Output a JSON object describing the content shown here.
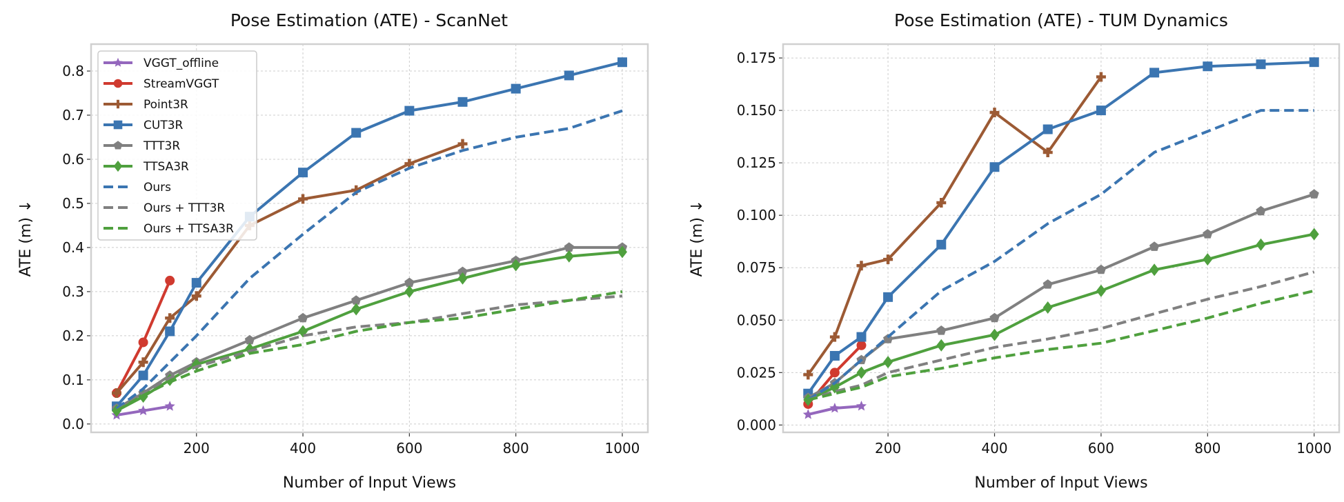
{
  "chart_data": [
    {
      "type": "line",
      "title": "Pose Estimation (ATE) - ScanNet",
      "xlabel": "Number of Input Views",
      "ylabel": "ATE (m)  ↓",
      "xlim": [
        2,
        1048
      ],
      "ylim": [
        -0.019,
        0.861
      ],
      "xticks": [
        200,
        400,
        600,
        800,
        1000
      ],
      "yticks": [
        0.0,
        0.1,
        0.2,
        0.3,
        0.4,
        0.5,
        0.6,
        0.7,
        0.8
      ],
      "ytick_decimals": 1,
      "grid": true,
      "legend": "top-left",
      "series": [
        {
          "name": "VGGT_offline",
          "color": "#9467bd",
          "marker": "star",
          "dash": false,
          "x": [
            50,
            100,
            150
          ],
          "y": [
            0.02,
            0.03,
            0.04
          ]
        },
        {
          "name": "StreamVGGT",
          "color": "#d03a2f",
          "marker": "circle",
          "dash": false,
          "x": [
            50,
            100,
            150
          ],
          "y": [
            0.07,
            0.185,
            0.325
          ]
        },
        {
          "name": "Point3R",
          "color": "#9c5a34",
          "marker": "plus",
          "dash": false,
          "x": [
            50,
            100,
            150,
            200,
            300,
            400,
            500,
            600,
            700
          ],
          "y": [
            0.07,
            0.14,
            0.24,
            0.29,
            0.45,
            0.51,
            0.53,
            0.59,
            0.635
          ]
        },
        {
          "name": "CUT3R",
          "color": "#3b75b1",
          "marker": "square",
          "dash": false,
          "x": [
            50,
            100,
            150,
            200,
            300,
            400,
            500,
            600,
            700,
            800,
            900,
            1000
          ],
          "y": [
            0.04,
            0.11,
            0.21,
            0.32,
            0.47,
            0.57,
            0.66,
            0.71,
            0.73,
            0.76,
            0.79,
            0.82
          ]
        },
        {
          "name": "TTT3R",
          "color": "#808080",
          "marker": "pentagon",
          "dash": false,
          "x": [
            50,
            100,
            150,
            200,
            300,
            400,
            500,
            600,
            700,
            800,
            900,
            1000
          ],
          "y": [
            0.035,
            0.07,
            0.11,
            0.14,
            0.19,
            0.24,
            0.28,
            0.32,
            0.345,
            0.37,
            0.4,
            0.4
          ]
        },
        {
          "name": "TTSA3R",
          "color": "#4fa03e",
          "marker": "diamond",
          "dash": false,
          "x": [
            50,
            100,
            150,
            200,
            300,
            400,
            500,
            600,
            700,
            800,
            900,
            1000
          ],
          "y": [
            0.03,
            0.062,
            0.1,
            0.135,
            0.17,
            0.21,
            0.26,
            0.3,
            0.33,
            0.36,
            0.38,
            0.39
          ]
        },
        {
          "name": "Ours",
          "color": "#3b75b1",
          "marker": "none",
          "dash": true,
          "x": [
            50,
            100,
            150,
            200,
            300,
            400,
            500,
            600,
            700,
            800,
            900,
            1000
          ],
          "y": [
            0.035,
            0.08,
            0.14,
            0.2,
            0.33,
            0.43,
            0.525,
            0.58,
            0.62,
            0.65,
            0.67,
            0.71
          ]
        },
        {
          "name": "Ours + TTT3R",
          "color": "#808080",
          "marker": "none",
          "dash": true,
          "x": [
            50,
            100,
            150,
            200,
            300,
            400,
            500,
            600,
            700,
            800,
            900,
            1000
          ],
          "y": [
            0.03,
            0.07,
            0.105,
            0.13,
            0.165,
            0.2,
            0.22,
            0.23,
            0.25,
            0.27,
            0.28,
            0.29
          ]
        },
        {
          "name": "Ours + TTSA3R",
          "color": "#4fa03e",
          "marker": "none",
          "dash": true,
          "x": [
            50,
            100,
            150,
            200,
            300,
            400,
            500,
            600,
            700,
            800,
            900,
            1000
          ],
          "y": [
            0.03,
            0.065,
            0.095,
            0.12,
            0.16,
            0.18,
            0.21,
            0.23,
            0.24,
            0.26,
            0.28,
            0.3
          ]
        }
      ]
    },
    {
      "type": "line",
      "title": "Pose Estimation (ATE) - TUM Dynamics",
      "xlabel": "Number of Input Views",
      "ylabel": "ATE (m)  ↓",
      "xlim": [
        3,
        1047
      ],
      "ylim": [
        -0.0035,
        0.1816
      ],
      "xticks": [
        200,
        400,
        600,
        800,
        1000
      ],
      "yticks": [
        0.0,
        0.025,
        0.05,
        0.075,
        0.1,
        0.125,
        0.15,
        0.175
      ],
      "ytick_decimals": 3,
      "grid": true,
      "legend": "none",
      "series": [
        {
          "name": "VGGT_offline",
          "color": "#9467bd",
          "marker": "star",
          "dash": false,
          "x": [
            50,
            100,
            150
          ],
          "y": [
            0.005,
            0.008,
            0.009
          ]
        },
        {
          "name": "StreamVGGT",
          "color": "#d03a2f",
          "marker": "circle",
          "dash": false,
          "x": [
            50,
            100,
            150
          ],
          "y": [
            0.01,
            0.025,
            0.038
          ]
        },
        {
          "name": "Point3R",
          "color": "#9c5a34",
          "marker": "plus",
          "dash": false,
          "x": [
            50,
            100,
            150,
            200,
            300,
            400,
            500,
            600
          ],
          "y": [
            0.024,
            0.042,
            0.076,
            0.079,
            0.106,
            0.149,
            0.13,
            0.166
          ]
        },
        {
          "name": "CUT3R",
          "color": "#3b75b1",
          "marker": "square",
          "dash": false,
          "x": [
            50,
            100,
            150,
            200,
            300,
            400,
            500,
            600,
            700,
            800,
            900,
            1000
          ],
          "y": [
            0.015,
            0.033,
            0.042,
            0.061,
            0.086,
            0.123,
            0.141,
            0.15,
            0.168,
            0.171,
            0.172,
            0.173
          ]
        },
        {
          "name": "TTT3R",
          "color": "#808080",
          "marker": "pentagon",
          "dash": false,
          "x": [
            50,
            100,
            150,
            200,
            300,
            400,
            500,
            600,
            700,
            800,
            900,
            1000
          ],
          "y": [
            0.013,
            0.02,
            0.031,
            0.041,
            0.045,
            0.051,
            0.067,
            0.074,
            0.085,
            0.091,
            0.102,
            0.11
          ]
        },
        {
          "name": "TTSA3R",
          "color": "#4fa03e",
          "marker": "diamond",
          "dash": false,
          "x": [
            50,
            100,
            150,
            200,
            300,
            400,
            500,
            600,
            700,
            800,
            900,
            1000
          ],
          "y": [
            0.012,
            0.018,
            0.025,
            0.03,
            0.038,
            0.043,
            0.056,
            0.064,
            0.074,
            0.079,
            0.086,
            0.091
          ]
        },
        {
          "name": "Ours",
          "color": "#3b75b1",
          "marker": "none",
          "dash": true,
          "x": [
            50,
            100,
            150,
            200,
            300,
            400,
            500,
            600,
            700,
            800,
            900,
            1000
          ],
          "y": [
            0.012,
            0.02,
            0.031,
            0.042,
            0.064,
            0.078,
            0.096,
            0.11,
            0.13,
            0.14,
            0.15,
            0.15
          ]
        },
        {
          "name": "Ours + TTT3R",
          "color": "#808080",
          "marker": "none",
          "dash": true,
          "x": [
            50,
            100,
            150,
            200,
            300,
            400,
            500,
            600,
            700,
            800,
            900,
            1000
          ],
          "y": [
            0.012,
            0.016,
            0.019,
            0.025,
            0.031,
            0.037,
            0.041,
            0.046,
            0.053,
            0.06,
            0.066,
            0.073
          ]
        },
        {
          "name": "Ours + TTSA3R",
          "color": "#4fa03e",
          "marker": "none",
          "dash": true,
          "x": [
            50,
            100,
            150,
            200,
            300,
            400,
            500,
            600,
            700,
            800,
            900,
            1000
          ],
          "y": [
            0.012,
            0.015,
            0.018,
            0.023,
            0.027,
            0.032,
            0.036,
            0.039,
            0.045,
            0.051,
            0.058,
            0.064
          ]
        }
      ]
    }
  ]
}
